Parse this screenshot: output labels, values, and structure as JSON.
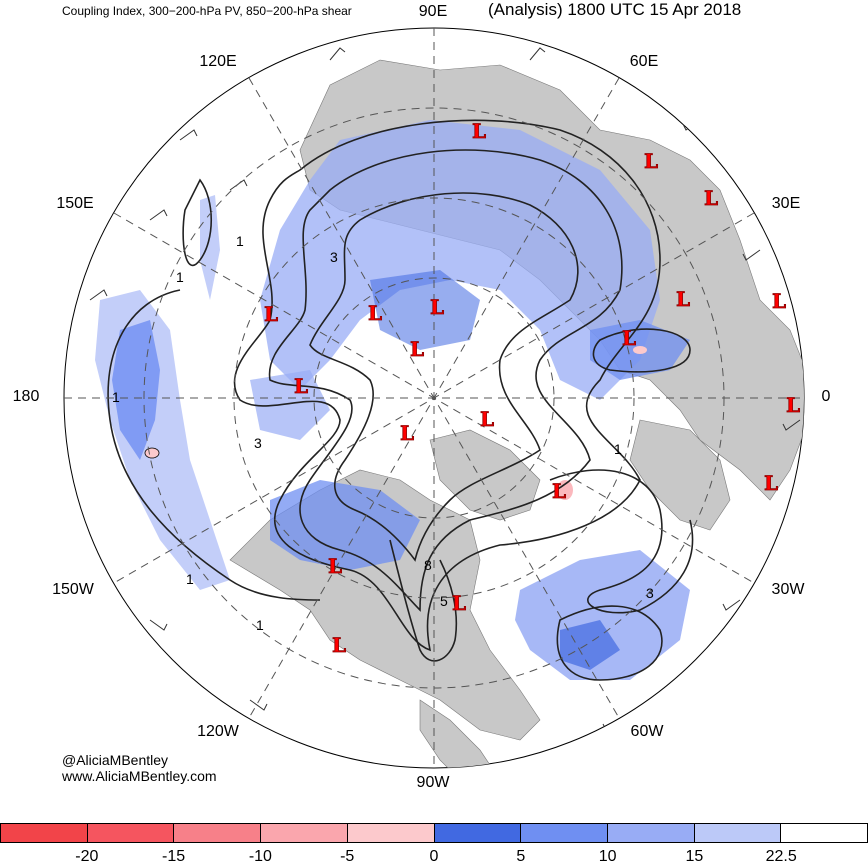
{
  "title_left": "Coupling Index, 300−200-hPa PV, 850−200-hPa shear",
  "title_right": "(Analysis) 1800 UTC 15 Apr 2018",
  "longitude_labels": [
    "90E",
    "60E",
    "120E",
    "150E",
    "30E",
    "180",
    "0",
    "150W",
    "30W",
    "120W",
    "60W",
    "90W"
  ],
  "contour_labels": [
    "1",
    "1",
    "1",
    "1",
    "1",
    "1",
    "3",
    "3",
    "3",
    "5",
    "8"
  ],
  "low_marker": "L",
  "credit": {
    "line1": "@AliciaMBentley",
    "line2": "www.AliciaMBentley.com"
  },
  "colorbar": {
    "colors": [
      "#f24449",
      "#f5555f",
      "#f78089",
      "#faa6ad",
      "#fcc9cc",
      "#4169e1",
      "#6f8ff2",
      "#98acf5",
      "#bcc9f8",
      "#ffffff"
    ],
    "ticks": [
      "-20",
      "-15",
      "-10",
      "-5",
      "0",
      "5",
      "10",
      "15",
      "22.5"
    ]
  },
  "colors": {
    "land": "#c8c8c8",
    "low_marker": "#ff0000",
    "shading_blue": "#4169e1"
  }
}
